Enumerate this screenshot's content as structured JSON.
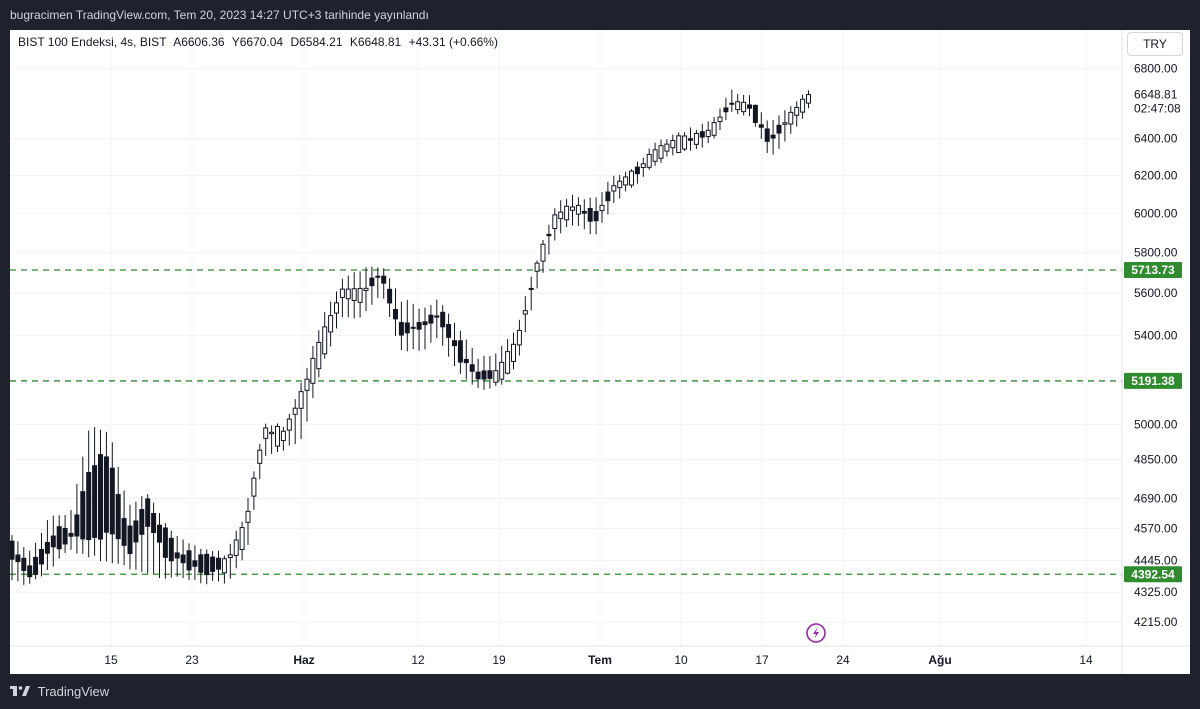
{
  "header": {
    "publish_text": "bugracimen TradingView.com, Tem 20, 2023 14:27 UTC+3 tarihinde yayınlandı"
  },
  "legend": {
    "symbol": "BIST 100 Endeksi, 4s, BIST",
    "open": "A6606.36",
    "high": "Y6670.04",
    "low": "D6584.21",
    "close": "K6648.81",
    "change": "+43.31 (+0.66%)"
  },
  "currency_button": "TRY",
  "footer": {
    "brand": "TradingView"
  },
  "colors": {
    "background": "#ffffff",
    "candle_up_fill": "#ffffff",
    "candle_down_fill": "#131722",
    "candle_stroke": "#131722",
    "level_line": "#2e8b2e",
    "level_label_bg": "#2e8b2e",
    "grid": "#f0f3fa",
    "flash_icon": "#9c27b0"
  },
  "chart_data": {
    "type": "candlestick",
    "y_scale": "log",
    "ylim": [
      4150,
      6940
    ],
    "y_ticks": [
      6800.0,
      6400.0,
      6200.0,
      6000.0,
      5800.0,
      5600.0,
      5400.0,
      5000.0,
      4850.0,
      4690.0,
      4570.0,
      4445.0,
      4325.0,
      4215.0
    ],
    "x_ticks": [
      {
        "label": "15",
        "bold": false
      },
      {
        "label": "23",
        "bold": false
      },
      {
        "label": "Haz",
        "bold": true
      },
      {
        "label": "12",
        "bold": false
      },
      {
        "label": "19",
        "bold": false
      },
      {
        "label": "Tem",
        "bold": true
      },
      {
        "label": "10",
        "bold": false
      },
      {
        "label": "17",
        "bold": false
      },
      {
        "label": "24",
        "bold": false
      },
      {
        "label": "Ağu",
        "bold": true
      },
      {
        "label": "14",
        "bold": false
      }
    ],
    "horizontal_levels": [
      5713.73,
      5191.38,
      4392.54
    ],
    "last_price": "6648.81",
    "countdown": "02:47:08",
    "anchors": [
      [
        4520,
        4450,
        4535,
        4380
      ],
      [
        4410,
        4380,
        4470,
        4360
      ],
      [
        4560,
        4480,
        4620,
        4430
      ],
      [
        4540,
        4540,
        4620,
        4500
      ],
      [
        4820,
        4520,
        4990,
        4470
      ],
      [
        4870,
        4560,
        4960,
        4450
      ],
      [
        4560,
        4470,
        4650,
        4430
      ],
      [
        4690,
        4580,
        4700,
        4400
      ],
      [
        4530,
        4460,
        4560,
        4390
      ],
      [
        4470,
        4420,
        4510,
        4390
      ],
      [
        4470,
        4390,
        4480,
        4370
      ],
      [
        4420,
        4440,
        4460,
        4370
      ],
      [
        4530,
        4580,
        4620,
        4460
      ],
      [
        4950,
        4980,
        5000,
        4870
      ],
      [
        4930,
        4970,
        4980,
        4890
      ],
      [
        5100,
        5160,
        5190,
        4960
      ],
      [
        5320,
        5400,
        5480,
        5280
      ],
      [
        5580,
        5620,
        5650,
        5500
      ],
      [
        5560,
        5620,
        5700,
        5500
      ],
      [
        5713,
        5690,
        5730,
        5620
      ],
      [
        5460,
        5400,
        5560,
        5340
      ],
      [
        5460,
        5430,
        5520,
        5340
      ],
      [
        5520,
        5480,
        5560,
        5400
      ],
      [
        5360,
        5300,
        5420,
        5230
      ],
      [
        5230,
        5200,
        5290,
        5160
      ],
      [
        5200,
        5230,
        5310,
        5170
      ],
      [
        5310,
        5380,
        5430,
        5280
      ],
      [
        5700,
        5740,
        5750,
        5620
      ],
      [
        5950,
        6000,
        6040,
        5900
      ],
      [
        6010,
        6050,
        6080,
        5960
      ],
      [
        6000,
        5950,
        6060,
        5890
      ],
      [
        6120,
        6150,
        6190,
        6080
      ],
      [
        6190,
        6210,
        6230,
        6150
      ],
      [
        6290,
        6320,
        6360,
        6260
      ],
      [
        6350,
        6390,
        6410,
        6320
      ],
      [
        6390,
        6400,
        6440,
        6360
      ],
      [
        6410,
        6460,
        6480,
        6380
      ],
      [
        6580,
        6610,
        6660,
        6550
      ],
      [
        6590,
        6570,
        6630,
        6540
      ],
      [
        6450,
        6350,
        6480,
        6300
      ],
      [
        6450,
        6550,
        6560,
        6420
      ],
      [
        6600,
        6648.81,
        6670.04,
        6584.21
      ]
    ]
  }
}
